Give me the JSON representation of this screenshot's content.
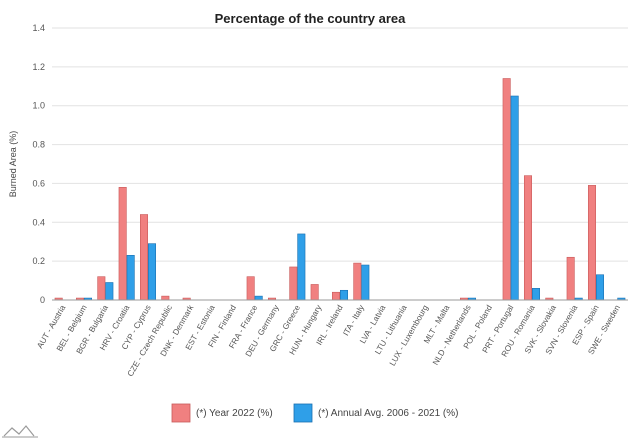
{
  "chart_data": {
    "type": "bar",
    "title": "Percentage of the country area",
    "ylabel": "Burned Area (%)",
    "xlabel": "",
    "ylim": [
      0,
      1.4
    ],
    "yticks": [
      "0",
      "0.2",
      "0.4",
      "0.6",
      "0.8",
      "1.0",
      "1.2",
      "1.4"
    ],
    "grid": true,
    "legend_position": "bottom",
    "categories": [
      "AUT - Austria",
      "BEL - Belgium",
      "BGR - Bulgaria",
      "HRV - Croatia",
      "CYP - Cyprus",
      "CZE - Czech Republic",
      "DNK - Denmark",
      "EST - Estonia",
      "FIN - Finland",
      "FRA - France",
      "DEU - Germany",
      "GRC - Greece",
      "HUN - Hungary",
      "IRL - Ireland",
      "ITA - Italy",
      "LVA - Latvia",
      "LTU - Lithuania",
      "LUX - Luxembourg",
      "MLT - Malta",
      "NLD - Netherlands",
      "POL - Poland",
      "PRT - Portugal",
      "ROU - Romania",
      "SVK - Slovakia",
      "SVN - Slovenia",
      "ESP - Spain",
      "SWE - Sweden"
    ],
    "series": [
      {
        "name": "(*) Year 2022 (%)",
        "color": "#f08080",
        "values": [
          0.01,
          0.01,
          0.12,
          0.58,
          0.44,
          0.02,
          0.01,
          0.0,
          0.0,
          0.12,
          0.01,
          0.17,
          0.08,
          0.04,
          0.19,
          0.0,
          0.0,
          0.0,
          0.0,
          0.01,
          0.0,
          1.14,
          0.64,
          0.01,
          0.22,
          0.59,
          0.0
        ]
      },
      {
        "name": "(*) Annual Avg. 2006 - 2021 (%)",
        "color": "#2f9fe8",
        "values": [
          0.0,
          0.01,
          0.09,
          0.23,
          0.29,
          0.0,
          0.0,
          0.0,
          0.0,
          0.02,
          0.0,
          0.34,
          0.0,
          0.05,
          0.18,
          0.0,
          0.0,
          0.0,
          0.0,
          0.01,
          0.0,
          1.05,
          0.06,
          0.0,
          0.01,
          0.13,
          0.01
        ]
      }
    ]
  }
}
